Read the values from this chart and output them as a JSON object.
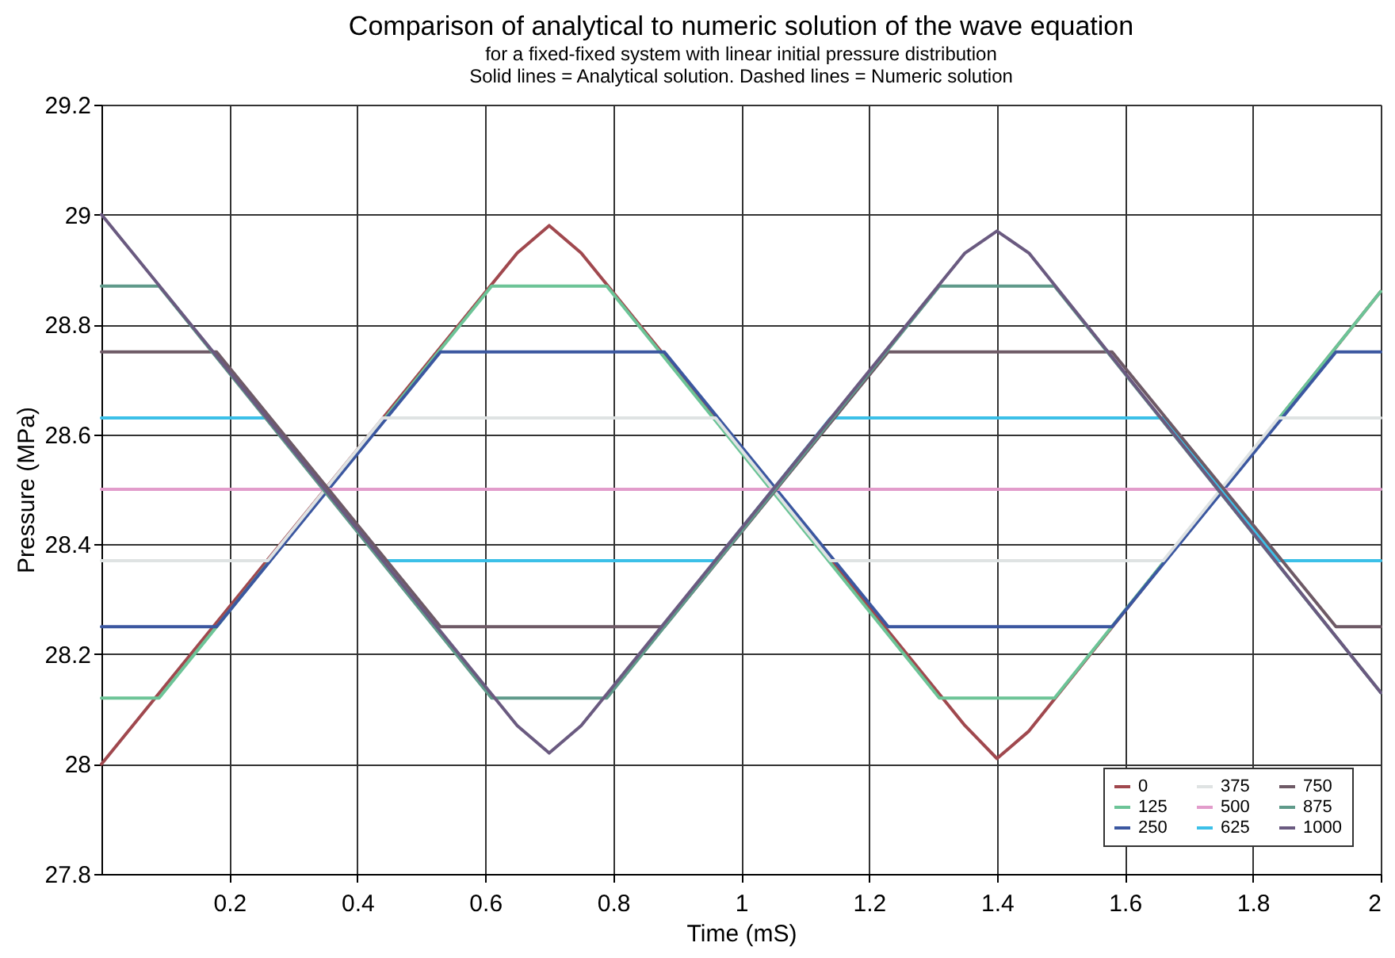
{
  "chart_data": {
    "type": "line",
    "title": "Comparison of analytical to numeric solution of the wave equation",
    "subtitle": "for a fixed-fixed system with linear initial pressure distribution",
    "annotations": [
      "Solid lines = Analytical solution. Dashed lines = Numeric solution"
    ],
    "xlabel": "Time (mS)",
    "ylabel": "Pressure (MPa)",
    "xlim": [
      0,
      2
    ],
    "xticks": [
      0.2,
      0.4,
      0.6,
      0.8,
      1,
      1.2,
      1.4,
      1.6,
      1.8,
      2
    ],
    "ylim": [
      27.8,
      29.2
    ],
    "yticks": [
      27.8,
      28,
      28.2,
      28.4,
      28.6,
      28.8,
      29,
      29.2
    ],
    "grid": true,
    "legend": "bottom right",
    "series": [
      {
        "name": "0",
        "color": "#a0484e",
        "x": [
          0,
          0.65,
          0.7,
          0.75,
          1.35,
          1.4,
          1.45,
          2
        ],
        "values": [
          28.0,
          28.93,
          28.98,
          28.93,
          28.07,
          28.01,
          28.06,
          28.86
        ]
      },
      {
        "name": "125",
        "color": "#6cc497",
        "x": [
          0,
          0.09,
          0.61,
          0.79,
          1.31,
          1.49,
          2
        ],
        "values": [
          28.12,
          28.12,
          28.87,
          28.87,
          28.12,
          28.12,
          28.86
        ]
      },
      {
        "name": "250",
        "color": "#3b57a0",
        "x": [
          0,
          0.18,
          0.53,
          0.88,
          1.23,
          1.58,
          1.93,
          2
        ],
        "values": [
          28.25,
          28.25,
          28.75,
          28.75,
          28.25,
          28.25,
          28.75,
          28.75
        ]
      },
      {
        "name": "375",
        "color": "#dfe3e3",
        "x": [
          0,
          0.26,
          0.44,
          0.96,
          1.14,
          1.66,
          1.84,
          2
        ],
        "values": [
          28.37,
          28.37,
          28.63,
          28.63,
          28.37,
          28.37,
          28.63,
          28.63
        ]
      },
      {
        "name": "500",
        "color": "#e29ccb",
        "x": [
          0,
          2
        ],
        "values": [
          28.5,
          28.5
        ]
      },
      {
        "name": "625",
        "color": "#3cc0e8",
        "x": [
          0,
          0.26,
          0.44,
          0.96,
          1.14,
          1.66,
          1.84,
          2
        ],
        "values": [
          28.63,
          28.63,
          28.37,
          28.37,
          28.63,
          28.63,
          28.37,
          28.37
        ]
      },
      {
        "name": "750",
        "color": "#6e5a66",
        "x": [
          0,
          0.18,
          0.53,
          0.88,
          1.23,
          1.58,
          1.93,
          2
        ],
        "values": [
          28.75,
          28.75,
          28.25,
          28.25,
          28.75,
          28.75,
          28.25,
          28.25
        ]
      },
      {
        "name": "875",
        "color": "#5f9a8a",
        "x": [
          0,
          0.09,
          0.61,
          0.79,
          1.31,
          1.49,
          2
        ],
        "values": [
          28.87,
          28.87,
          28.12,
          28.12,
          28.87,
          28.87,
          28.13
        ]
      },
      {
        "name": "1000",
        "color": "#6a5a80",
        "x": [
          0,
          0.65,
          0.7,
          0.75,
          1.35,
          1.4,
          1.45,
          2
        ],
        "values": [
          29.0,
          28.07,
          28.02,
          28.07,
          28.93,
          28.97,
          28.93,
          28.13
        ]
      }
    ]
  }
}
